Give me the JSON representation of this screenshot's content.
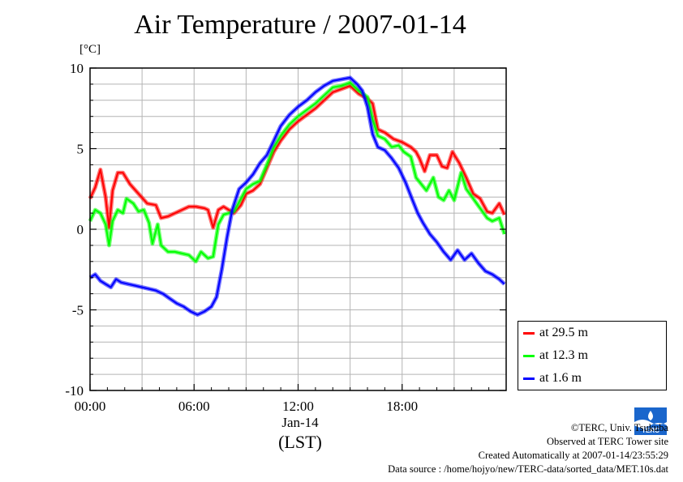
{
  "chart_data": {
    "type": "line",
    "title": "Air Temperature / 2007-01-14",
    "ylabel": "[°C]",
    "xlabel": "(LST)",
    "x_date_label": "Jan-14",
    "ylim": [
      -10,
      10
    ],
    "yticks": [
      "10",
      "5",
      "0",
      "-5",
      "-10"
    ],
    "xlim_hours": [
      0,
      24
    ],
    "xticks": [
      {
        "hour": 0,
        "label": "00:00"
      },
      {
        "hour": 6,
        "label": "06:00"
      },
      {
        "hour": 12,
        "label": "12:00"
      },
      {
        "hour": 18,
        "label": "18:00"
      }
    ],
    "grid": true,
    "legend_placement": "right, below plot",
    "series": [
      {
        "name": "at 29.5 m",
        "color": "#ff0000",
        "points": [
          [
            0,
            1.9
          ],
          [
            0.3,
            2.6
          ],
          [
            0.6,
            3.7
          ],
          [
            0.9,
            2.0
          ],
          [
            1.1,
            0.1
          ],
          [
            1.3,
            2.4
          ],
          [
            1.6,
            3.5
          ],
          [
            1.9,
            3.5
          ],
          [
            2.3,
            2.8
          ],
          [
            2.8,
            2.2
          ],
          [
            3.3,
            1.6
          ],
          [
            3.8,
            1.5
          ],
          [
            4.1,
            0.7
          ],
          [
            4.5,
            0.8
          ],
          [
            4.9,
            1.0
          ],
          [
            5.3,
            1.2
          ],
          [
            5.7,
            1.4
          ],
          [
            6.1,
            1.4
          ],
          [
            6.6,
            1.3
          ],
          [
            6.8,
            1.2
          ],
          [
            7.1,
            0.1
          ],
          [
            7.4,
            1.2
          ],
          [
            7.7,
            1.4
          ],
          [
            8.0,
            1.2
          ],
          [
            8.3,
            1.0
          ],
          [
            8.7,
            1.5
          ],
          [
            9.0,
            2.2
          ],
          [
            9.4,
            2.4
          ],
          [
            9.8,
            2.8
          ],
          [
            10.2,
            3.8
          ],
          [
            10.6,
            4.8
          ],
          [
            11.0,
            5.5
          ],
          [
            11.5,
            6.2
          ],
          [
            12.0,
            6.7
          ],
          [
            12.5,
            7.1
          ],
          [
            13.0,
            7.5
          ],
          [
            13.5,
            8.0
          ],
          [
            14.0,
            8.5
          ],
          [
            14.5,
            8.7
          ],
          [
            15.0,
            8.9
          ],
          [
            15.5,
            8.4
          ],
          [
            16.0,
            8.1
          ],
          [
            16.3,
            7.8
          ],
          [
            16.6,
            6.2
          ],
          [
            17.0,
            6.0
          ],
          [
            17.5,
            5.6
          ],
          [
            18.0,
            5.4
          ],
          [
            18.5,
            5.1
          ],
          [
            18.8,
            4.8
          ],
          [
            19.0,
            4.4
          ],
          [
            19.3,
            3.6
          ],
          [
            19.6,
            4.6
          ],
          [
            20.0,
            4.6
          ],
          [
            20.3,
            3.9
          ],
          [
            20.6,
            3.8
          ],
          [
            20.9,
            4.8
          ],
          [
            21.3,
            4.1
          ],
          [
            21.7,
            3.2
          ],
          [
            22.1,
            2.2
          ],
          [
            22.5,
            1.9
          ],
          [
            22.9,
            1.1
          ],
          [
            23.2,
            1.0
          ],
          [
            23.6,
            1.6
          ],
          [
            23.9,
            0.9
          ]
        ]
      },
      {
        "name": "at 12.3 m",
        "color": "#00ff00",
        "points": [
          [
            0,
            0.5
          ],
          [
            0.3,
            1.2
          ],
          [
            0.6,
            1.0
          ],
          [
            0.9,
            0.3
          ],
          [
            1.1,
            -1.0
          ],
          [
            1.3,
            0.5
          ],
          [
            1.6,
            1.2
          ],
          [
            1.9,
            1.0
          ],
          [
            2.1,
            1.9
          ],
          [
            2.5,
            1.6
          ],
          [
            2.8,
            1.1
          ],
          [
            3.1,
            1.2
          ],
          [
            3.4,
            0.4
          ],
          [
            3.6,
            -0.9
          ],
          [
            3.9,
            0.3
          ],
          [
            4.1,
            -1.0
          ],
          [
            4.5,
            -1.4
          ],
          [
            4.9,
            -1.4
          ],
          [
            5.3,
            -1.5
          ],
          [
            5.7,
            -1.6
          ],
          [
            6.1,
            -2.0
          ],
          [
            6.4,
            -1.4
          ],
          [
            6.8,
            -1.8
          ],
          [
            7.1,
            -1.7
          ],
          [
            7.4,
            0.3
          ],
          [
            7.7,
            0.9
          ],
          [
            8.0,
            1.0
          ],
          [
            8.3,
            1.1
          ],
          [
            8.7,
            1.9
          ],
          [
            9.0,
            2.5
          ],
          [
            9.4,
            2.8
          ],
          [
            9.8,
            3.0
          ],
          [
            10.2,
            4.0
          ],
          [
            10.6,
            5.1
          ],
          [
            11.0,
            5.8
          ],
          [
            11.5,
            6.5
          ],
          [
            12.0,
            7.0
          ],
          [
            12.5,
            7.4
          ],
          [
            13.0,
            7.8
          ],
          [
            13.5,
            8.3
          ],
          [
            14.0,
            8.8
          ],
          [
            14.5,
            8.9
          ],
          [
            15.0,
            9.1
          ],
          [
            15.5,
            8.6
          ],
          [
            16.0,
            8.2
          ],
          [
            16.3,
            6.8
          ],
          [
            16.6,
            5.8
          ],
          [
            17.0,
            5.6
          ],
          [
            17.4,
            5.1
          ],
          [
            17.8,
            5.2
          ],
          [
            18.1,
            4.8
          ],
          [
            18.5,
            4.5
          ],
          [
            18.8,
            3.2
          ],
          [
            19.1,
            2.8
          ],
          [
            19.4,
            2.4
          ],
          [
            19.8,
            3.2
          ],
          [
            20.1,
            2.0
          ],
          [
            20.4,
            1.8
          ],
          [
            20.7,
            2.4
          ],
          [
            21.0,
            1.8
          ],
          [
            21.4,
            3.5
          ],
          [
            21.7,
            2.5
          ],
          [
            22.1,
            1.9
          ],
          [
            22.5,
            1.3
          ],
          [
            22.9,
            0.7
          ],
          [
            23.2,
            0.5
          ],
          [
            23.6,
            0.7
          ],
          [
            23.9,
            -0.3
          ]
        ]
      },
      {
        "name": "at 1.6 m",
        "color": "#0000ff",
        "points": [
          [
            0,
            -3.0
          ],
          [
            0.3,
            -2.8
          ],
          [
            0.6,
            -3.2
          ],
          [
            0.9,
            -3.4
          ],
          [
            1.2,
            -3.6
          ],
          [
            1.5,
            -3.1
          ],
          [
            1.8,
            -3.3
          ],
          [
            2.2,
            -3.4
          ],
          [
            2.6,
            -3.5
          ],
          [
            3.0,
            -3.6
          ],
          [
            3.4,
            -3.7
          ],
          [
            3.8,
            -3.8
          ],
          [
            4.2,
            -4.0
          ],
          [
            4.6,
            -4.3
          ],
          [
            5.0,
            -4.6
          ],
          [
            5.4,
            -4.8
          ],
          [
            5.8,
            -5.1
          ],
          [
            6.2,
            -5.3
          ],
          [
            6.6,
            -5.1
          ],
          [
            7.0,
            -4.8
          ],
          [
            7.3,
            -4.2
          ],
          [
            7.6,
            -2.5
          ],
          [
            7.9,
            -0.5
          ],
          [
            8.2,
            1.2
          ],
          [
            8.6,
            2.5
          ],
          [
            9.0,
            2.9
          ],
          [
            9.4,
            3.4
          ],
          [
            9.8,
            4.1
          ],
          [
            10.2,
            4.6
          ],
          [
            10.6,
            5.5
          ],
          [
            11.0,
            6.4
          ],
          [
            11.5,
            7.1
          ],
          [
            12.0,
            7.6
          ],
          [
            12.5,
            8.0
          ],
          [
            13.0,
            8.5
          ],
          [
            13.5,
            8.9
          ],
          [
            14.0,
            9.2
          ],
          [
            14.5,
            9.3
          ],
          [
            15.0,
            9.4
          ],
          [
            15.4,
            9.0
          ],
          [
            15.7,
            8.6
          ],
          [
            16.0,
            7.6
          ],
          [
            16.3,
            5.9
          ],
          [
            16.6,
            5.1
          ],
          [
            17.0,
            4.9
          ],
          [
            17.4,
            4.4
          ],
          [
            17.8,
            3.8
          ],
          [
            18.2,
            2.9
          ],
          [
            18.6,
            1.8
          ],
          [
            18.9,
            1.0
          ],
          [
            19.2,
            0.4
          ],
          [
            19.6,
            -0.3
          ],
          [
            20.0,
            -0.8
          ],
          [
            20.4,
            -1.4
          ],
          [
            20.8,
            -1.9
          ],
          [
            21.2,
            -1.3
          ],
          [
            21.6,
            -1.9
          ],
          [
            22.0,
            -1.5
          ],
          [
            22.4,
            -2.1
          ],
          [
            22.8,
            -2.6
          ],
          [
            23.2,
            -2.8
          ],
          [
            23.6,
            -3.1
          ],
          [
            23.9,
            -3.4
          ]
        ]
      }
    ]
  },
  "legend": {
    "items": [
      {
        "label": "at 29.5 m",
        "color": "#ff0000"
      },
      {
        "label": "at 12.3 m",
        "color": "#00ff00"
      },
      {
        "label": "at 1.6 m",
        "color": "#0000ff"
      }
    ]
  },
  "footer": {
    "copyright": "©TERC, Univ. Tsukuba",
    "observed": "Observed at TERC Tower site",
    "created": "Created Automatically at 2007-01-14/23:55:29",
    "source": "Data source : /home/hojyo/new/TERC-data/sorted_data/MET.10s.dat"
  },
  "logo": {
    "text": "TERC"
  }
}
